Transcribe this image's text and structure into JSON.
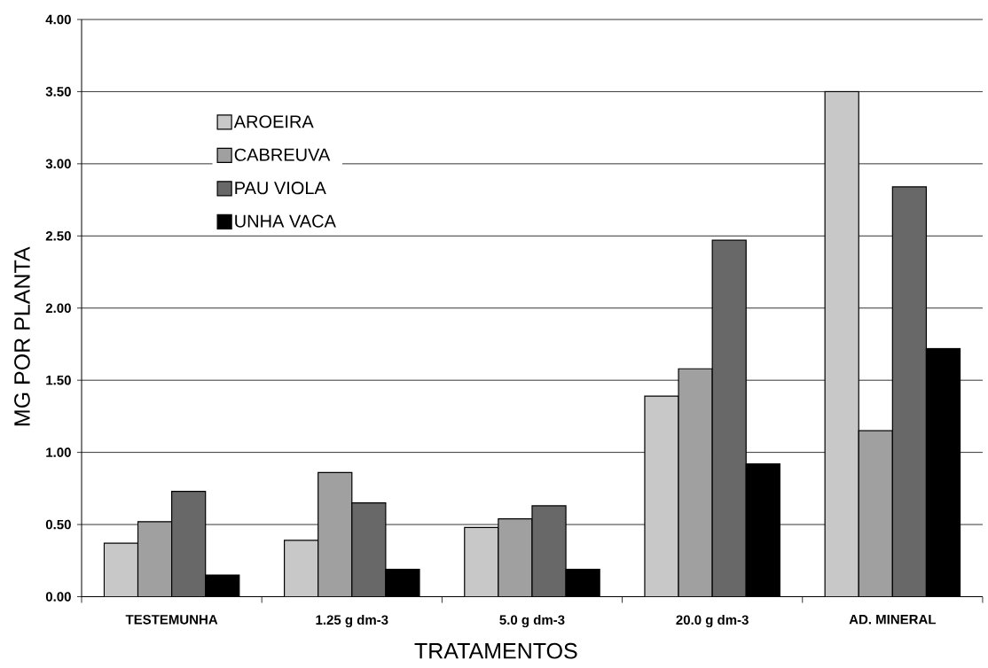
{
  "chart_data": {
    "type": "bar",
    "xlabel": "TRATAMENTOS",
    "ylabel": "MG POR PLANTA",
    "categories": [
      "TESTEMUNHA",
      "1.25 g dm-3",
      "5.0 g dm-3",
      "20.0 g dm-3",
      "AD. MINERAL"
    ],
    "series": [
      {
        "name": "AROEIRA",
        "color": "#c8c8c8",
        "values": [
          0.37,
          0.39,
          0.48,
          1.39,
          3.5
        ]
      },
      {
        "name": "CABREUVA",
        "color": "#a0a0a0",
        "values": [
          0.52,
          0.86,
          0.54,
          1.58,
          1.15
        ]
      },
      {
        "name": "PAU VIOLA",
        "color": "#686868",
        "values": [
          0.73,
          0.65,
          0.63,
          2.47,
          2.84
        ]
      },
      {
        "name": "UNHA VACA",
        "color": "#000000",
        "values": [
          0.15,
          0.19,
          0.19,
          0.92,
          1.72
        ]
      }
    ],
    "ylim": [
      0,
      4
    ],
    "yticks": [
      {
        "value": 0,
        "label": "0.00"
      },
      {
        "value": 0.5,
        "label": "0.50"
      },
      {
        "value": 1,
        "label": "1.00"
      },
      {
        "value": 1.5,
        "label": "1.50"
      },
      {
        "value": 2,
        "label": "2.00"
      },
      {
        "value": 2.5,
        "label": "2.50"
      },
      {
        "value": 3,
        "label": "3.00"
      },
      {
        "value": 3.5,
        "label": "3.50"
      },
      {
        "value": 4,
        "label": "4.00"
      }
    ],
    "grid": "y",
    "legend": "top left"
  }
}
